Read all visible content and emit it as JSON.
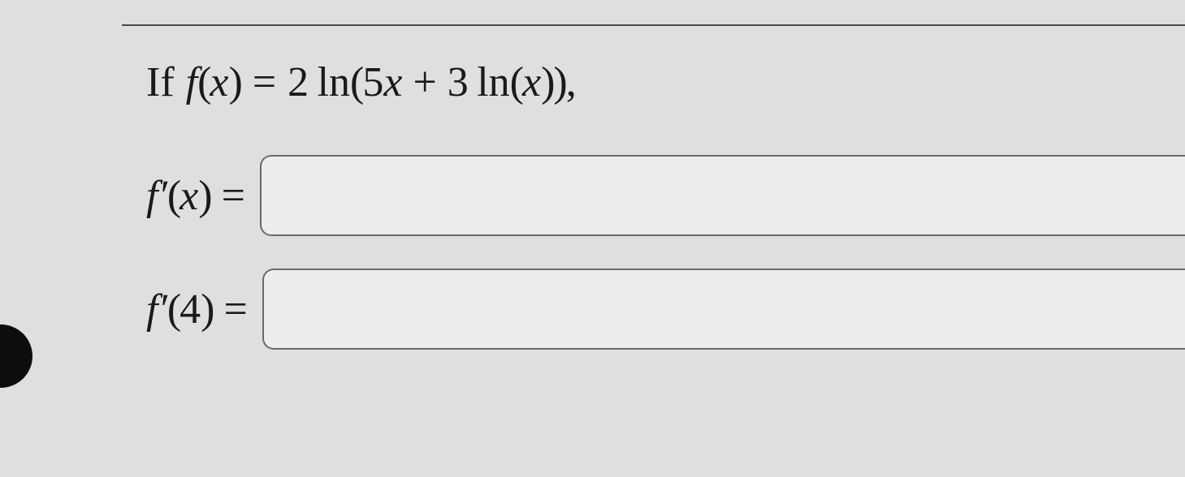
{
  "question": {
    "prefix": "If",
    "func_sym": "f",
    "func_arg": "x",
    "eq": "=",
    "rhs_coeff": "2",
    "rhs_op1": "ln",
    "inner_coeff": "5",
    "inner_var": "x",
    "plus": "+",
    "inner_coeff2": "3",
    "rhs_op2": "ln",
    "inner_var2": "x",
    "trailing": ","
  },
  "row1": {
    "func_sym": "f",
    "prime": "′",
    "arg": "x",
    "eq": "=",
    "value": ""
  },
  "row2": {
    "func_sym": "f",
    "prime": "′",
    "arg": "4",
    "eq": "=",
    "value": ""
  }
}
